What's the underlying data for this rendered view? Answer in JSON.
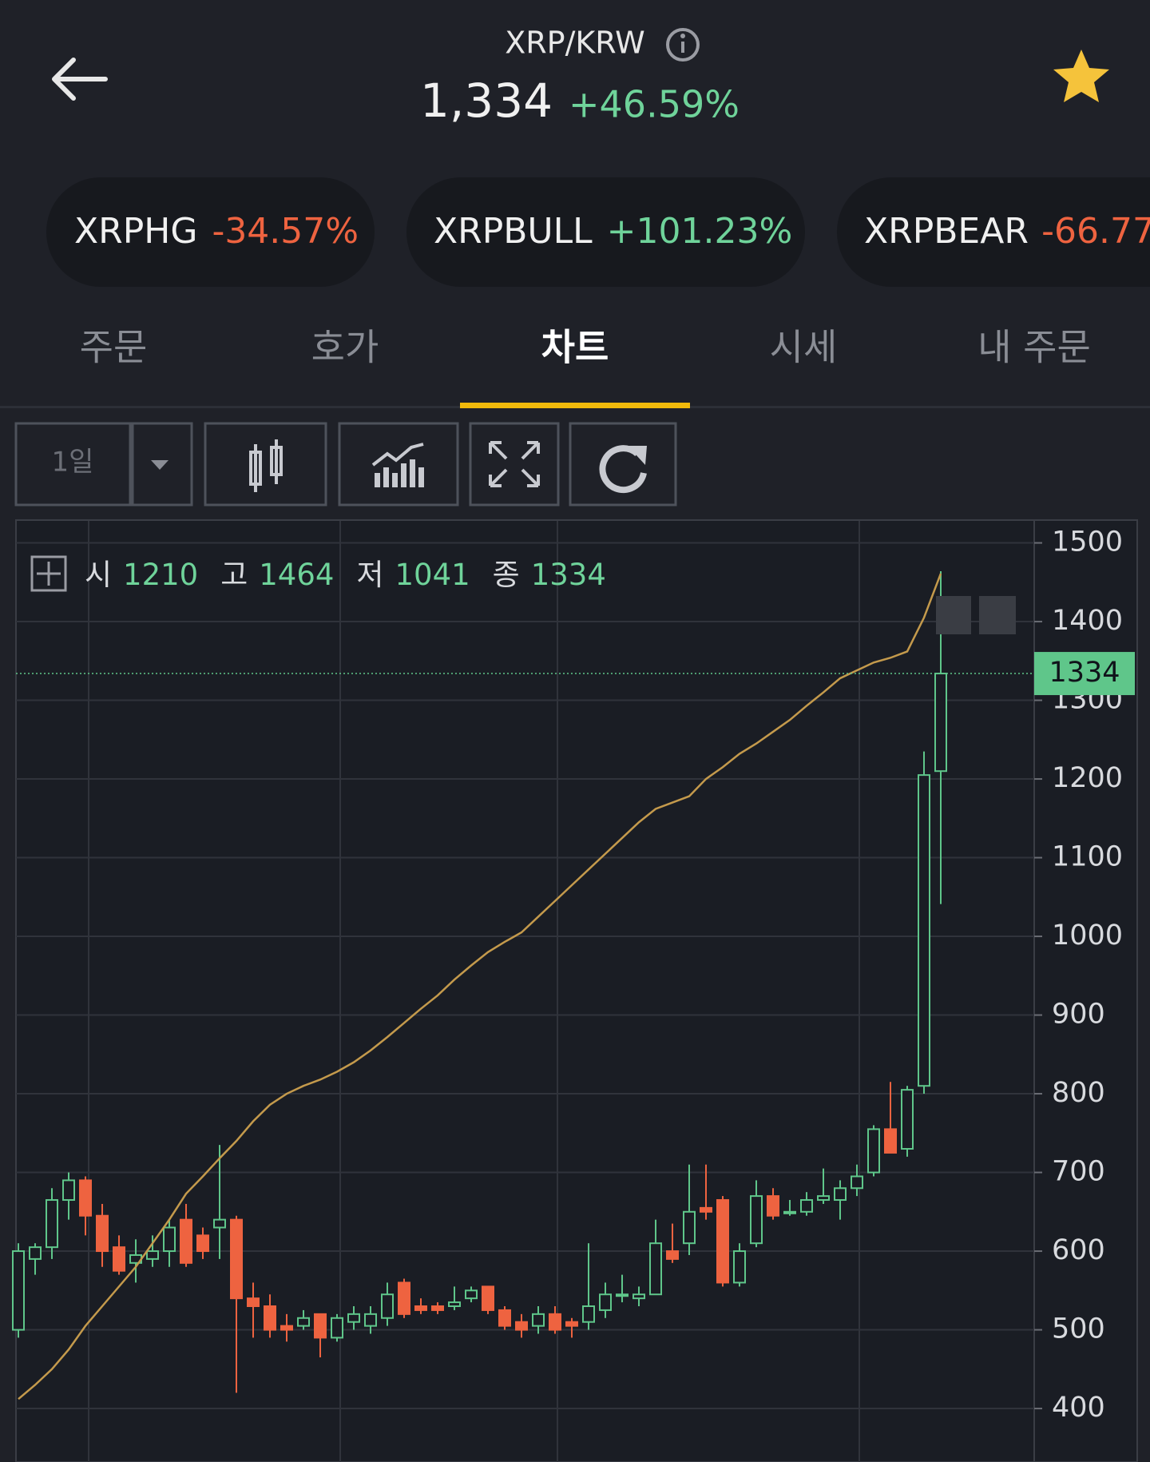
{
  "header": {
    "pair": "XRP/KRW",
    "price": "1,334",
    "change": "+46.59%"
  },
  "tickers": [
    {
      "name": "XRPHG",
      "change": "-34.57%"
    },
    {
      "name": "XRPBULL",
      "change": "+101.23%"
    },
    {
      "name": "XRPBEAR",
      "change": "-66.77"
    }
  ],
  "tabs": [
    "주문",
    "호가",
    "차트",
    "시세",
    "내 주문"
  ],
  "active_tab": 2,
  "toolbar": {
    "interval": "1일"
  },
  "chart_data": {
    "type": "candlestick",
    "ohlc_legend": [
      {
        "label": "시",
        "value": 1210
      },
      {
        "label": "고",
        "value": 1464
      },
      {
        "label": "저",
        "value": 1041
      },
      {
        "label": "종",
        "value": 1334
      }
    ],
    "last_price": 1334,
    "ylim": [
      330,
      1530
    ],
    "yticks": [
      400,
      500,
      600,
      700,
      800,
      900,
      1000,
      1100,
      1200,
      1300,
      1400,
      1500
    ],
    "grid": true,
    "up_color": "#5fc68a",
    "down_color": "#ee6340",
    "open": [
      500,
      590,
      605,
      665,
      690,
      645,
      605,
      585,
      590,
      600,
      640,
      620,
      630,
      640,
      540,
      530,
      505,
      505,
      520,
      490,
      510,
      505,
      515,
      560,
      530,
      530,
      530,
      540,
      555,
      525,
      510,
      505,
      520,
      510,
      510,
      525,
      545,
      540,
      545,
      600,
      610,
      655,
      665,
      560,
      610,
      670,
      650,
      650,
      665,
      665,
      680,
      700,
      755,
      730,
      810,
      1210
    ],
    "high": [
      610,
      610,
      680,
      700,
      695,
      660,
      620,
      615,
      620,
      640,
      660,
      630,
      735,
      645,
      560,
      545,
      520,
      525,
      520,
      520,
      530,
      530,
      560,
      565,
      540,
      535,
      555,
      555,
      555,
      530,
      520,
      530,
      530,
      515,
      610,
      560,
      570,
      555,
      640,
      635,
      710,
      710,
      670,
      610,
      690,
      680,
      665,
      675,
      705,
      690,
      710,
      760,
      815,
      810,
      1235,
      1464
    ],
    "low": [
      490,
      570,
      590,
      640,
      620,
      580,
      570,
      560,
      580,
      580,
      580,
      590,
      590,
      420,
      490,
      490,
      485,
      500,
      465,
      485,
      500,
      495,
      505,
      515,
      520,
      520,
      525,
      535,
      520,
      500,
      490,
      495,
      495,
      490,
      500,
      515,
      535,
      530,
      545,
      585,
      595,
      640,
      555,
      555,
      605,
      640,
      645,
      645,
      660,
      640,
      670,
      695,
      725,
      720,
      800,
      1041
    ],
    "close": [
      600,
      605,
      665,
      690,
      645,
      600,
      575,
      595,
      600,
      630,
      585,
      600,
      640,
      540,
      530,
      500,
      500,
      515,
      490,
      515,
      520,
      520,
      545,
      520,
      525,
      525,
      535,
      550,
      525,
      505,
      500,
      520,
      500,
      505,
      530,
      545,
      545,
      545,
      610,
      590,
      650,
      650,
      560,
      600,
      670,
      645,
      650,
      665,
      670,
      680,
      695,
      755,
      725,
      805,
      1205,
      1334
    ],
    "ma": {
      "color": "#c49a4c",
      "values": [
        412,
        430,
        450,
        475,
        505,
        530,
        555,
        580,
        610,
        640,
        673,
        695,
        718,
        740,
        765,
        786,
        800,
        810,
        818,
        828,
        840,
        855,
        872,
        890,
        908,
        925,
        945,
        963,
        980,
        993,
        1005,
        1025,
        1045,
        1065,
        1085,
        1105,
        1125,
        1145,
        1162,
        1170,
        1178,
        1200,
        1215,
        1232,
        1245,
        1260,
        1275,
        1293,
        1310,
        1328,
        1338,
        1348,
        1354,
        1362,
        1405,
        1461
      ]
    }
  }
}
